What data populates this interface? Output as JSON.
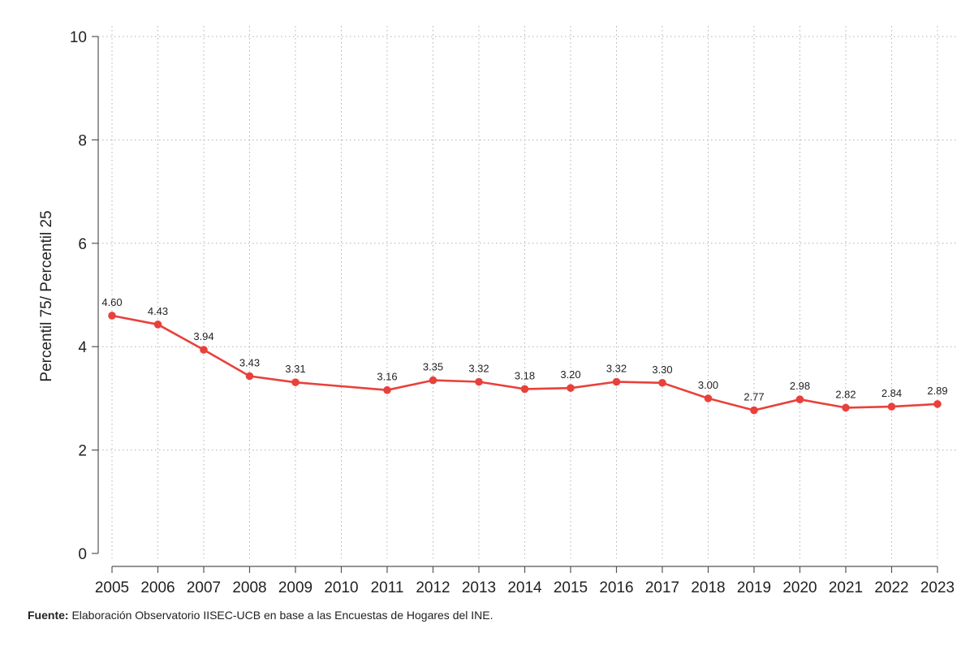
{
  "chart_data": {
    "type": "line",
    "title": "",
    "xlabel": "",
    "ylabel": "Percentil 75/ Percentil 25",
    "ylim": [
      0,
      10
    ],
    "yticks": [
      0,
      2,
      4,
      6,
      8,
      10
    ],
    "grid": true,
    "legend": "none",
    "line_color": "#e8413b",
    "x_ticks": [
      "2005",
      "2006",
      "2007",
      "2008",
      "2009",
      "2010",
      "2011",
      "2012",
      "2013",
      "2014",
      "2015",
      "2016",
      "2017",
      "2018",
      "2019",
      "2020",
      "2021",
      "2022",
      "2023"
    ],
    "series": [
      {
        "x": [
          2005,
          2006,
          2007,
          2008,
          2009,
          2011,
          2012,
          2013,
          2014,
          2015,
          2016,
          2017,
          2018,
          2019,
          2020,
          2021,
          2022,
          2023
        ],
        "values": [
          4.6,
          4.43,
          3.94,
          3.43,
          3.31,
          3.16,
          3.35,
          3.32,
          3.18,
          3.2,
          3.32,
          3.3,
          3.0,
          2.77,
          2.98,
          2.82,
          2.84,
          2.89
        ],
        "labels": [
          "4.60",
          "4.43",
          "3.94",
          "3.43",
          "3.31",
          "3.16",
          "3.35",
          "3.32",
          "3.18",
          "3.20",
          "3.32",
          "3.30",
          "3.00",
          "2.77",
          "2.98",
          "2.82",
          "2.84",
          "2.89"
        ]
      }
    ]
  },
  "source": {
    "prefix": "Fuente:",
    "text": " Elaboración Observatorio IISEC-UCB en base a las Encuestas de Hogares del INE."
  }
}
